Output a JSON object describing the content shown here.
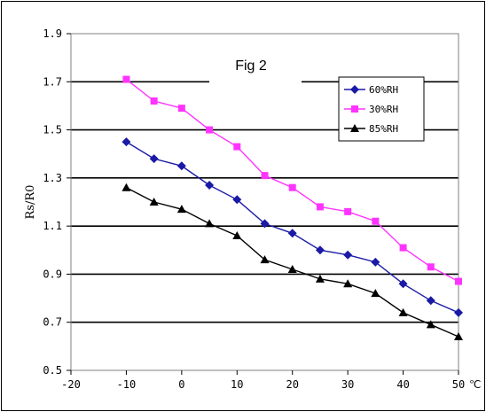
{
  "chart_data": {
    "type": "line",
    "title": "Fig 2",
    "ylabel": "Rs/R0",
    "xunit": "℃",
    "xlim": [
      -20,
      50
    ],
    "ylim": [
      0.5,
      1.9
    ],
    "x_ticks": [
      -20,
      -10,
      0,
      10,
      20,
      30,
      40,
      50
    ],
    "y_ticks": [
      "0.5",
      "0.7",
      "0.9",
      "1.1",
      "1.3",
      "1.5",
      "1.7",
      "1.9"
    ],
    "grid": "horizontal",
    "legend_position": "top-right",
    "x": [
      -10,
      -5,
      0,
      5,
      10,
      15,
      20,
      25,
      30,
      35,
      40,
      45,
      50
    ],
    "series": [
      {
        "name": "60%RH",
        "color": "#1a1aa6",
        "marker": "diamond",
        "values": [
          1.45,
          1.38,
          1.35,
          1.27,
          1.21,
          1.11,
          1.07,
          1.0,
          0.98,
          0.95,
          0.86,
          0.79,
          0.74
        ]
      },
      {
        "name": "30%RH",
        "color": "#ff33ff",
        "marker": "square",
        "values": [
          1.71,
          1.62,
          1.59,
          1.5,
          1.43,
          1.31,
          1.26,
          1.18,
          1.16,
          1.12,
          1.01,
          0.93,
          0.87
        ]
      },
      {
        "name": "85%RH",
        "color": "#000000",
        "marker": "triangle",
        "values": [
          1.26,
          1.2,
          1.17,
          1.11,
          1.06,
          0.96,
          0.92,
          0.88,
          0.86,
          0.82,
          0.74,
          0.69,
          0.64
        ]
      }
    ]
  }
}
